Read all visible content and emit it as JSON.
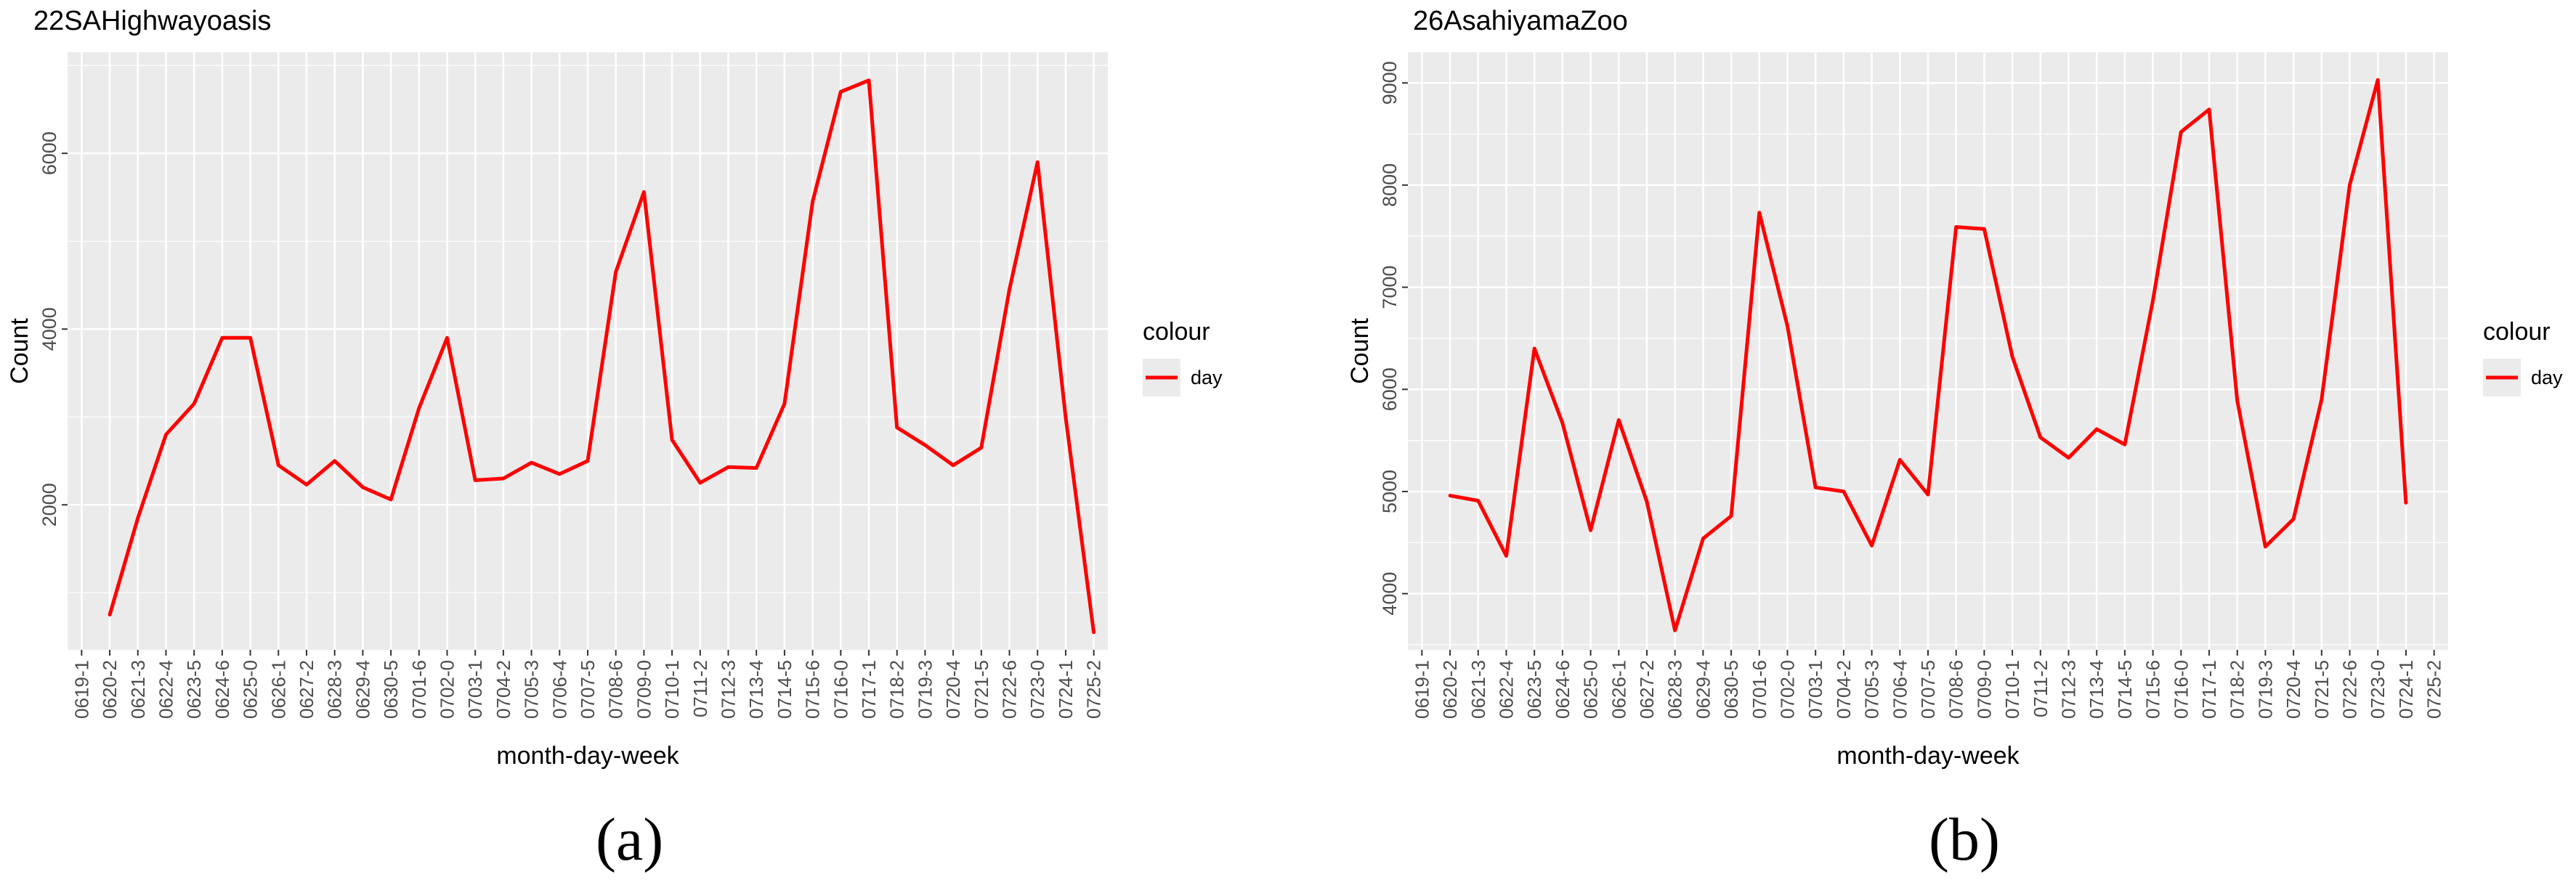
{
  "chart_data": [
    {
      "type": "line",
      "title": "22SAHighwayoasis",
      "panel_label": "(a)",
      "xlabel": "month-day-week",
      "ylabel": "Count",
      "legend_title": "colour",
      "legend_position": "right",
      "grid": true,
      "categories": [
        "0619-1",
        "0620-2",
        "0621-3",
        "0622-4",
        "0623-5",
        "0624-6",
        "0625-0",
        "0626-1",
        "0627-2",
        "0628-3",
        "0629-4",
        "0630-5",
        "0701-6",
        "0702-0",
        "0703-1",
        "0704-2",
        "0705-3",
        "0706-4",
        "0707-5",
        "0708-6",
        "0709-0",
        "0710-1",
        "0711-2",
        "0712-3",
        "0713-4",
        "0714-5",
        "0715-6",
        "0716-0",
        "0717-1",
        "0718-2",
        "0719-3",
        "0720-4",
        "0721-5",
        "0722-6",
        "0723-0",
        "0724-1",
        "0725-2"
      ],
      "ylim": [
        350,
        7150
      ],
      "yticks": [
        2000,
        4000,
        6000
      ],
      "series": [
        {
          "name": "day",
          "color": "#ff0000",
          "values": [
            null,
            750,
            1850,
            2800,
            3150,
            3900,
            3900,
            2450,
            2230,
            2500,
            2200,
            2060,
            3100,
            3900,
            2280,
            2300,
            2480,
            2350,
            2500,
            4650,
            5560,
            2740,
            2250,
            2430,
            2420,
            3150,
            5450,
            6700,
            6830,
            2880,
            2680,
            2450,
            2650,
            4450,
            5900,
            3000,
            550
          ]
        }
      ]
    },
    {
      "type": "line",
      "title": "26AsahiyamaZoo",
      "panel_label": "(b)",
      "xlabel": "month-day-week",
      "ylabel": "Count",
      "legend_title": "colour",
      "legend_position": "right",
      "grid": true,
      "categories": [
        "0619-1",
        "0620-2",
        "0621-3",
        "0622-4",
        "0623-5",
        "0624-6",
        "0625-0",
        "0626-1",
        "0627-2",
        "0628-3",
        "0629-4",
        "0630-5",
        "0701-6",
        "0702-0",
        "0703-1",
        "0704-2",
        "0705-3",
        "0706-4",
        "0707-5",
        "0708-6",
        "0709-0",
        "0710-1",
        "0711-2",
        "0712-3",
        "0713-4",
        "0714-5",
        "0715-6",
        "0716-0",
        "0717-1",
        "0718-2",
        "0719-3",
        "0720-4",
        "0721-5",
        "0722-6",
        "0723-0",
        "0724-1",
        "0725-2"
      ],
      "ylim": [
        3450,
        9300
      ],
      "yticks": [
        4000,
        5000,
        6000,
        7000,
        8000,
        9000
      ],
      "series": [
        {
          "name": "day",
          "color": "#ff0000",
          "values": [
            null,
            4960,
            4910,
            4370,
            6400,
            5670,
            4620,
            5700,
            4900,
            3640,
            4540,
            4760,
            7730,
            6620,
            5040,
            5000,
            4470,
            5310,
            4970,
            7590,
            7570,
            6320,
            5530,
            5330,
            5610,
            5460,
            6870,
            8520,
            8740,
            5890,
            4460,
            4730,
            5900,
            8000,
            9030,
            4890,
            null
          ]
        }
      ]
    }
  ]
}
